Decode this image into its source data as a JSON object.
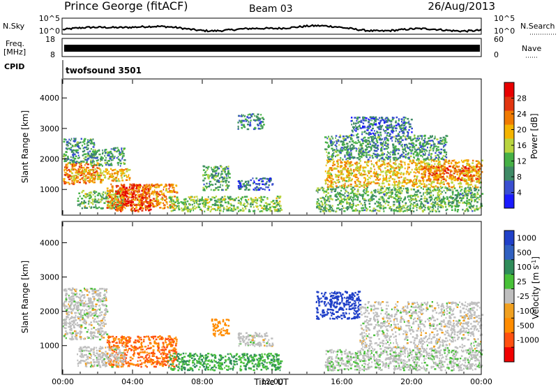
{
  "header": {
    "title": "Prince George (fitACF)",
    "beam": "Beam 03",
    "date": "26/Aug/2013"
  },
  "nsky_panel": {
    "left_label": "N.Sky",
    "left_ticks": [
      "10^5",
      "10^0"
    ],
    "right_label": "N.Search",
    "right_ticks": [
      "10^5",
      "10^0"
    ]
  },
  "freq_panel": {
    "left_label_1": "Freq.",
    "left_label_2": "[MHz]",
    "left_ticks": [
      "18",
      "8"
    ],
    "right_label": "Nave",
    "right_ticks": [
      "60",
      "0"
    ]
  },
  "cpid_panel": {
    "label": "CPID",
    "program": "twofsound 3501"
  },
  "colors": {
    "power": [
      "#1a1aff",
      "#3a4fd0",
      "#3f8a66",
      "#46b046",
      "#b9d43f",
      "#f4b400",
      "#f07a00",
      "#e23510",
      "#e80000"
    ],
    "velocity": [
      "#2040c8",
      "#3060c0",
      "#2f8c5a",
      "#48c038",
      "#bebebe",
      "#f0a020",
      "#ff8c00",
      "#ff5010",
      "#f00000"
    ]
  },
  "chart_data": [
    {
      "type": "heatmap",
      "quantity": "power",
      "ylabel": "Slant Range [km]",
      "xlabel": "",
      "x_ticks": [
        "00:00",
        "04:00",
        "08:00",
        "12:00",
        "16:00",
        "20:00",
        "00:00"
      ],
      "y_ticks": [
        1000,
        2000,
        3000,
        4000
      ],
      "xlim": [
        0,
        24
      ],
      "ylim": [
        180,
        4600
      ],
      "colorbar": {
        "label": "Power [dB]",
        "ticks": [
          4,
          8,
          12,
          16,
          20,
          24,
          28
        ],
        "range": [
          0,
          32
        ]
      },
      "regions": [
        {
          "t": [
            0.0,
            2.2
          ],
          "r": [
            1200,
            1900
          ],
          "v": 23
        },
        {
          "t": [
            0.0,
            1.8
          ],
          "r": [
            1900,
            2700
          ],
          "v": 10
        },
        {
          "t": [
            0.4,
            3.8
          ],
          "r": [
            1300,
            1700
          ],
          "v": 19
        },
        {
          "t": [
            0.8,
            3.5
          ],
          "r": [
            400,
            1000
          ],
          "v": 13
        },
        {
          "t": [
            1.5,
            3.5
          ],
          "r": [
            1800,
            2400
          ],
          "v": 10
        },
        {
          "t": [
            2.5,
            6.5
          ],
          "r": [
            400,
            1200
          ],
          "v": 22
        },
        {
          "t": [
            3.0,
            5.0
          ],
          "r": [
            300,
            1200
          ],
          "v": 27
        },
        {
          "t": [
            6.0,
            12.5
          ],
          "r": [
            300,
            800
          ],
          "v": 14
        },
        {
          "t": [
            8.0,
            9.5
          ],
          "r": [
            1000,
            1800
          ],
          "v": 11
        },
        {
          "t": [
            10.0,
            11.5
          ],
          "r": [
            3000,
            3500
          ],
          "v": 9
        },
        {
          "t": [
            10.0,
            12.0
          ],
          "r": [
            1000,
            1400
          ],
          "v": 6
        },
        {
          "t": [
            14.5,
            24.0
          ],
          "r": [
            300,
            1100
          ],
          "v": 12
        },
        {
          "t": [
            15.0,
            24.0
          ],
          "r": [
            1100,
            2000
          ],
          "v": 19
        },
        {
          "t": [
            20.5,
            24.0
          ],
          "r": [
            1300,
            1800
          ],
          "v": 24
        },
        {
          "t": [
            15.0,
            22.0
          ],
          "r": [
            2000,
            2800
          ],
          "v": 10
        },
        {
          "t": [
            16.5,
            20.0
          ],
          "r": [
            2800,
            3400
          ],
          "v": 7
        }
      ]
    },
    {
      "type": "heatmap",
      "quantity": "velocity",
      "ylabel": "Slant Range [km]",
      "xlabel": "Time UT",
      "x_ticks": [
        "00:00",
        "04:00",
        "08:00",
        "12:00",
        "16:00",
        "20:00",
        "00:00"
      ],
      "y_ticks": [
        1000,
        2000,
        3000,
        4000
      ],
      "xlim": [
        0,
        24
      ],
      "ylim": [
        180,
        4600
      ],
      "colorbar": {
        "label": "Velocity [m s^-1]",
        "ticks": [
          "1000",
          "500",
          "100",
          "25",
          "-25",
          "-100",
          "-500",
          "-1000"
        ]
      },
      "regions": [
        {
          "t": [
            0.0,
            2.5
          ],
          "r": [
            1200,
            2700
          ],
          "v": 0
        },
        {
          "t": [
            2.5,
            6.5
          ],
          "r": [
            400,
            1300
          ],
          "v": -300
        },
        {
          "t": [
            0.8,
            3.5
          ],
          "r": [
            400,
            1000
          ],
          "v": 0
        },
        {
          "t": [
            6.0,
            12.5
          ],
          "r": [
            300,
            800
          ],
          "v": 60
        },
        {
          "t": [
            8.5,
            9.5
          ],
          "r": [
            1300,
            1800
          ],
          "v": -150
        },
        {
          "t": [
            10.0,
            12.0
          ],
          "r": [
            1000,
            1400
          ],
          "v": 0
        },
        {
          "t": [
            14.5,
            17.0
          ],
          "r": [
            1800,
            2600
          ],
          "v": 900
        },
        {
          "t": [
            17.0,
            24.0
          ],
          "r": [
            900,
            2300
          ],
          "v": 0
        },
        {
          "t": [
            15.0,
            24.0
          ],
          "r": [
            300,
            900
          ],
          "v": 10
        }
      ]
    }
  ]
}
